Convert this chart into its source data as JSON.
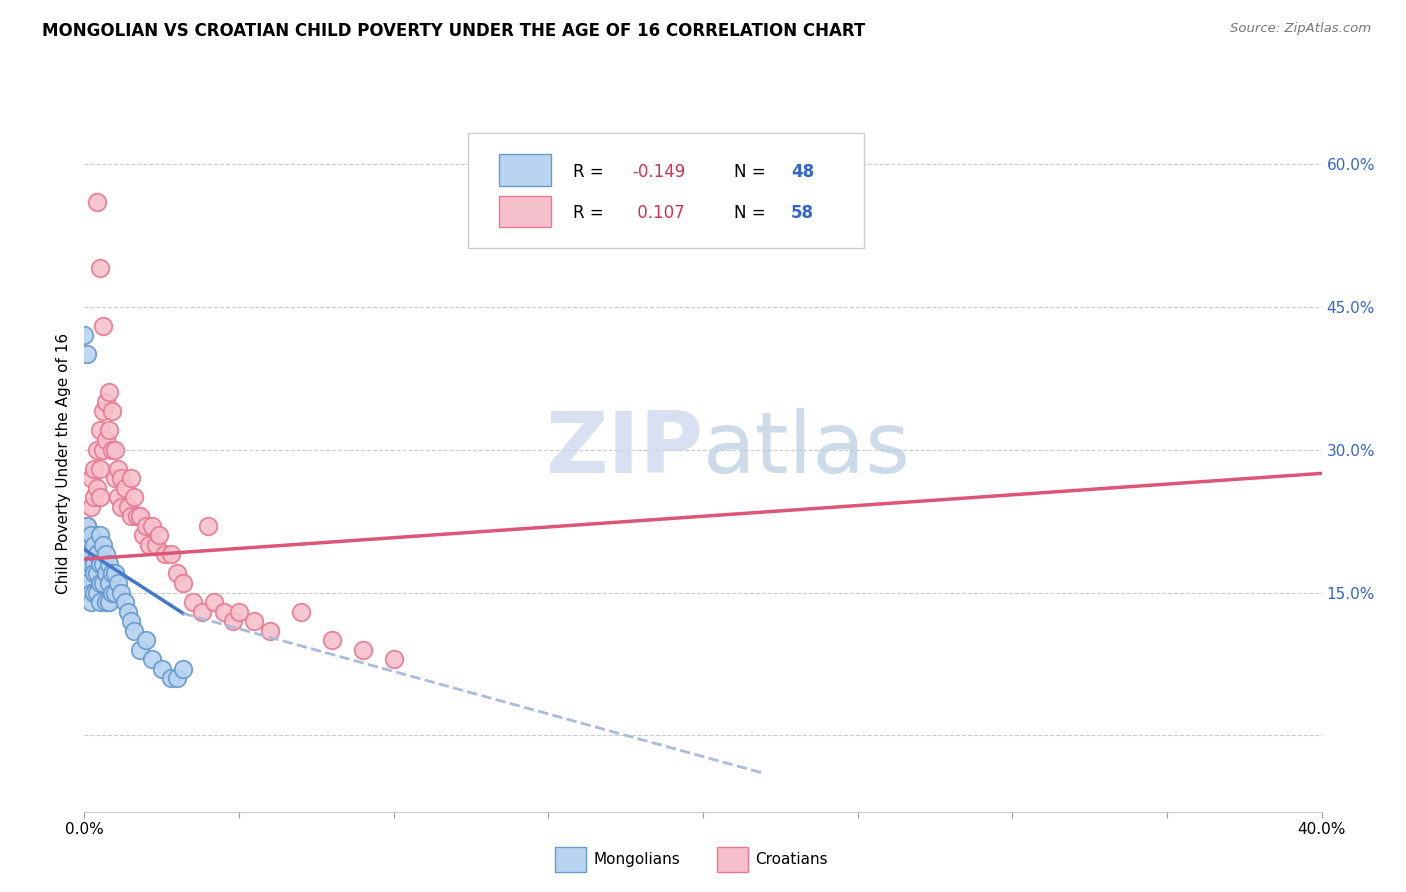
{
  "title": "MONGOLIAN VS CROATIAN CHILD POVERTY UNDER THE AGE OF 16 CORRELATION CHART",
  "source": "Source: ZipAtlas.com",
  "ylabel": "Child Poverty Under the Age of 16",
  "xlim": [
    0.0,
    0.4
  ],
  "ylim": [
    -0.08,
    0.65
  ],
  "mongolian_color": "#b8d4f0",
  "mongolian_edge": "#6699cc",
  "croatian_color": "#f5c0cc",
  "croatian_edge": "#e87890",
  "mongolian_line_color": "#4477cc",
  "croatian_line_color": "#dd5577",
  "dashed_line_color": "#aabbdd",
  "watermark_zip_color": "#c8d8f0",
  "watermark_atlas_color": "#c8d8e8",
  "legend_R_color": "#cc3355",
  "legend_N_color": "#3366cc",
  "mongolian_R": -0.149,
  "mongolian_N": 48,
  "croatian_R": 0.107,
  "croatian_N": 58,
  "mong_x": [
    0.0,
    0.0,
    0.001,
    0.001,
    0.001,
    0.002,
    0.002,
    0.002,
    0.002,
    0.003,
    0.003,
    0.003,
    0.003,
    0.004,
    0.004,
    0.004,
    0.005,
    0.005,
    0.005,
    0.005,
    0.006,
    0.006,
    0.006,
    0.007,
    0.007,
    0.007,
    0.008,
    0.008,
    0.008,
    0.009,
    0.009,
    0.01,
    0.01,
    0.011,
    0.012,
    0.013,
    0.014,
    0.015,
    0.016,
    0.018,
    0.02,
    0.022,
    0.025,
    0.028,
    0.03,
    0.032,
    0.0,
    0.001
  ],
  "mong_y": [
    0.2,
    0.17,
    0.22,
    0.19,
    0.16,
    0.21,
    0.18,
    0.15,
    0.14,
    0.2,
    0.18,
    0.17,
    0.15,
    0.19,
    0.17,
    0.15,
    0.21,
    0.18,
    0.16,
    0.14,
    0.2,
    0.18,
    0.16,
    0.19,
    0.17,
    0.14,
    0.18,
    0.16,
    0.14,
    0.17,
    0.15,
    0.17,
    0.15,
    0.16,
    0.15,
    0.14,
    0.13,
    0.12,
    0.11,
    0.09,
    0.1,
    0.08,
    0.07,
    0.06,
    0.06,
    0.07,
    0.42,
    0.4
  ],
  "croat_x": [
    0.0,
    0.001,
    0.002,
    0.002,
    0.003,
    0.003,
    0.004,
    0.004,
    0.005,
    0.005,
    0.005,
    0.006,
    0.006,
    0.007,
    0.007,
    0.008,
    0.008,
    0.009,
    0.009,
    0.01,
    0.01,
    0.011,
    0.011,
    0.012,
    0.012,
    0.013,
    0.014,
    0.015,
    0.015,
    0.016,
    0.017,
    0.018,
    0.019,
    0.02,
    0.021,
    0.022,
    0.023,
    0.024,
    0.026,
    0.028,
    0.03,
    0.032,
    0.035,
    0.038,
    0.04,
    0.042,
    0.045,
    0.048,
    0.05,
    0.055,
    0.06,
    0.07,
    0.08,
    0.09,
    0.1,
    0.004,
    0.005,
    0.006
  ],
  "croat_y": [
    0.21,
    0.22,
    0.27,
    0.24,
    0.28,
    0.25,
    0.3,
    0.26,
    0.32,
    0.28,
    0.25,
    0.34,
    0.3,
    0.35,
    0.31,
    0.36,
    0.32,
    0.34,
    0.3,
    0.3,
    0.27,
    0.28,
    0.25,
    0.27,
    0.24,
    0.26,
    0.24,
    0.27,
    0.23,
    0.25,
    0.23,
    0.23,
    0.21,
    0.22,
    0.2,
    0.22,
    0.2,
    0.21,
    0.19,
    0.19,
    0.17,
    0.16,
    0.14,
    0.13,
    0.22,
    0.14,
    0.13,
    0.12,
    0.13,
    0.12,
    0.11,
    0.13,
    0.1,
    0.09,
    0.08,
    0.56,
    0.49,
    0.43
  ],
  "blue_line_x0": 0.0,
  "blue_line_x1": 0.032,
  "blue_line_y0": 0.195,
  "blue_line_y1": 0.128,
  "dashed_line_x0": 0.032,
  "dashed_line_x1": 0.22,
  "dashed_line_y0": 0.128,
  "dashed_line_y1": -0.04,
  "pink_line_x0": 0.0,
  "pink_line_x1": 0.4,
  "pink_line_y0": 0.185,
  "pink_line_y1": 0.275
}
